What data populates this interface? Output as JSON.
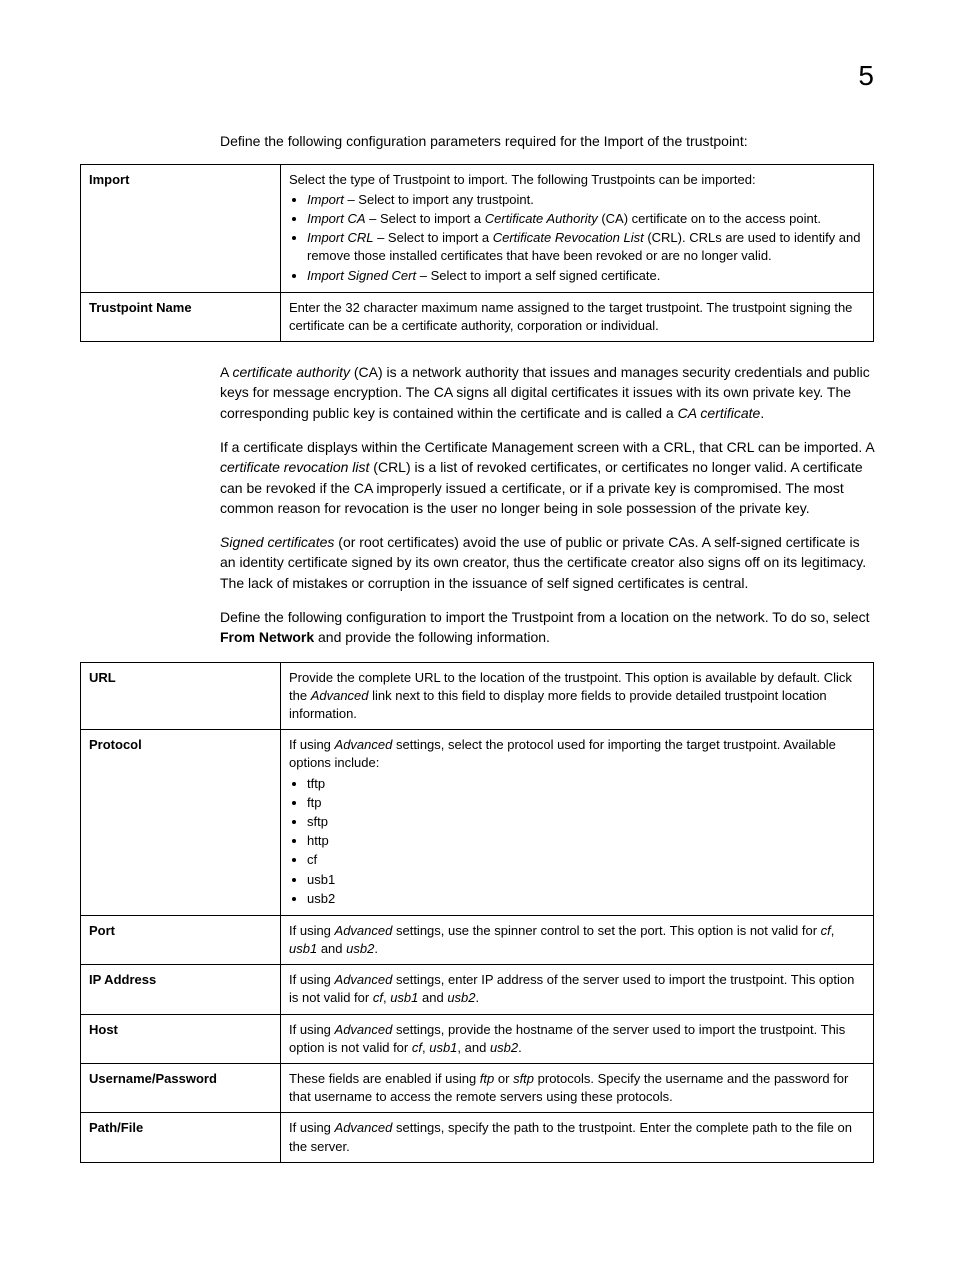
{
  "page_number": "5",
  "intro1": "Define the following configuration parameters required for the Import of the trustpoint:",
  "table1": {
    "rows": [
      {
        "label": "Import",
        "desc_lead": "Select the type of Trustpoint to import. The following Trustpoints can be imported:",
        "bullets": [
          {
            "term": "Import",
            "text": " – Select to import any trustpoint."
          },
          {
            "term": "Import CA",
            "text_pre": " – Select to import a ",
            "term2": "Certificate Authority",
            "text_post": " (CA) certificate on to the access point."
          },
          {
            "term": "Import CRL",
            "text_pre": " – Select to import a ",
            "term2": "Certificate Revocation List",
            "text_post": " (CRL). CRLs are used to identify and remove those installed certificates that have been revoked or are no longer valid."
          },
          {
            "term": "Import Signed Cert",
            "text": " – Select to import a self signed certificate."
          }
        ]
      },
      {
        "label": "Trustpoint Name",
        "desc": "Enter the 32 character maximum name assigned to the target trustpoint. The trustpoint signing the certificate can be a certificate authority, corporation or individual."
      }
    ]
  },
  "para_ca_pre": "A ",
  "para_ca_term": "certificate authority",
  "para_ca_mid": " (CA) is a network authority that issues and manages security credentials and public keys for message encryption. The CA signs all digital certificates it issues with its own private key. The corresponding public key is contained within the certificate and is called a ",
  "para_ca_term2": "CA certificate",
  "para_ca_end": ".",
  "para_crl_pre": "If a certificate displays within the Certificate Management screen with a CRL, that CRL can be imported. A ",
  "para_crl_term": "certificate revocation list",
  "para_crl_post": " (CRL) is a list of revoked certificates, or certificates no longer valid. A certificate can be revoked if the CA improperly issued a certificate, or if a private key is compromised. The most common reason for revocation is the user no longer being in sole possession of the private key.",
  "para_signed_term": "Signed certificates",
  "para_signed_post": " (or root certificates) avoid the use of public or private CAs. A self-signed certificate is an identity certificate signed by its own creator, thus the certificate creator also signs off on its legitimacy. The lack of mistakes or corruption in the issuance of self signed certificates is central.",
  "para_define_pre": "Define the following configuration to import the Trustpoint from a location on the network. To do so, select ",
  "para_define_bold": "From Network",
  "para_define_post": " and provide the following information.",
  "table2": {
    "rows": [
      {
        "label": "URL",
        "desc_pre": "Provide the complete URL to the location of the trustpoint. This option is available by default. Click the ",
        "desc_italic": "Advanced",
        "desc_post": " link next to this field to display more fields to provide detailed trustpoint location information."
      },
      {
        "label": "Protocol",
        "desc_pre": "If using ",
        "desc_italic": "Advanced",
        "desc_post": " settings, select the protocol used for importing the target trustpoint. Available options include:",
        "bullets": [
          "tftp",
          "ftp",
          "sftp",
          "http",
          "cf",
          "usb1",
          "usb2"
        ]
      },
      {
        "label": "Port",
        "desc_pre": "If using ",
        "desc_italic1": "Advanced",
        "desc_mid": " settings, use the spinner control to set the port. This option is not valid for ",
        "desc_italic2": "cf",
        "desc_sep1": ", ",
        "desc_italic3": "usb1",
        "desc_sep2": " and ",
        "desc_italic4": "usb2",
        "desc_end": "."
      },
      {
        "label": "IP Address",
        "desc_pre": "If using ",
        "desc_italic1": "Advanced",
        "desc_mid": " settings, enter IP address of the server used to import the trustpoint. This option is not valid for ",
        "desc_italic2": "cf",
        "desc_sep1": ", ",
        "desc_italic3": "usb1",
        "desc_sep2": " and ",
        "desc_italic4": "usb2",
        "desc_end": "."
      },
      {
        "label": "Host",
        "desc_pre": "If using ",
        "desc_italic1": "Advanced",
        "desc_mid": " settings, provide the hostname of the server used to import the trustpoint. This option is not valid for ",
        "desc_italic2": "cf",
        "desc_sep1": ", ",
        "desc_italic3": "usb1",
        "desc_sep2": ", and ",
        "desc_italic4": "usb2",
        "desc_end": "."
      },
      {
        "label": "Username/Password",
        "desc_pre": "These fields are enabled if using ",
        "desc_italic1": "ftp",
        "desc_sep": " or ",
        "desc_italic2": "sftp",
        "desc_post": " protocols. Specify the username and the password for that username to access the remote servers using these protocols."
      },
      {
        "label": "Path/File",
        "desc_pre": "If using ",
        "desc_italic": "Advanced",
        "desc_post": " settings, specify the path to the trustpoint. Enter the complete path to the file on the server."
      }
    ]
  }
}
